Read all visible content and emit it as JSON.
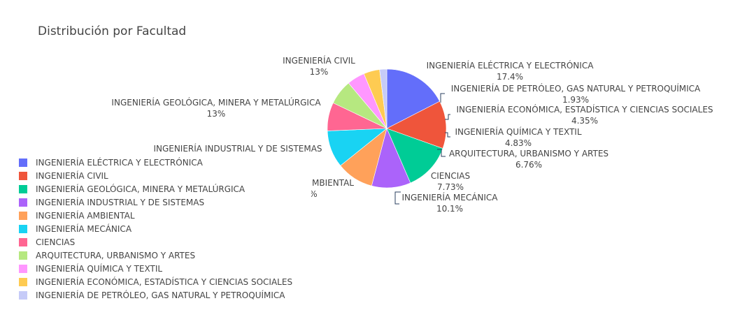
{
  "chart_data": {
    "type": "pie",
    "title": "Distribución por Facultad",
    "legend_placement": "bottom-left",
    "slices": [
      {
        "label": "INGENIERÍA ELÉCTRICA Y ELECTRÓNICA",
        "value": 17.4,
        "text": "17.4%",
        "color": "#636efa"
      },
      {
        "label": "INGENIERÍA CIVIL",
        "value": 13.0,
        "text": "13%",
        "color": "#EF553B"
      },
      {
        "label": "INGENIERÍA GEOLÓGICA, MINERA Y METALÚRGICA",
        "value": 13.0,
        "text": "13%",
        "color": "#00cc96"
      },
      {
        "label": "INGENIERÍA INDUSTRIAL Y DE SISTEMAS",
        "value": 10.6,
        "text": "",
        "color": "#ab63fa"
      },
      {
        "label": "INGENIERÍA AMBIENTAL",
        "value": 10.1,
        "text": "%",
        "color": "#FFA15A"
      },
      {
        "label": "INGENIERÍA MECÁNICA",
        "value": 10.1,
        "text": "10.1%",
        "color": "#19d3f3"
      },
      {
        "label": "CIENCIAS",
        "value": 7.73,
        "text": "7.73%",
        "color": "#FF6692"
      },
      {
        "label": "ARQUITECTURA, URBANISMO Y ARTES",
        "value": 6.76,
        "text": "6.76%",
        "color": "#B6E880"
      },
      {
        "label": "INGENIERÍA QUÍMICA Y TEXTIL",
        "value": 4.83,
        "text": "4.83%",
        "color": "#FF97FF"
      },
      {
        "label": "INGENIERÍA ECONÓMICA, ESTADÍSTICA Y CIENCIAS SOCIALES",
        "value": 4.35,
        "text": "4.35%",
        "color": "#FECB52"
      },
      {
        "label": "INGENIERÍA DE PETRÓLEO, GAS NATURAL Y PETROQUÍMICA",
        "value": 1.93,
        "text": "1.93%",
        "color": "#c6cbf8"
      }
    ],
    "visible_partial_label": "MBIENTAL"
  }
}
